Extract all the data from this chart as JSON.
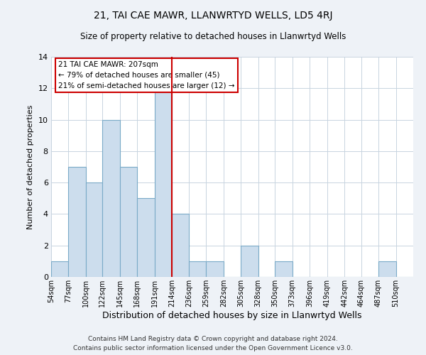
{
  "title1": "21, TAI CAE MAWR, LLANWRTYD WELLS, LD5 4RJ",
  "title2": "Size of property relative to detached houses in Llanwrtyd Wells",
  "xlabel": "Distribution of detached houses by size in Llanwrtyd Wells",
  "ylabel": "Number of detached properties",
  "footer1": "Contains HM Land Registry data © Crown copyright and database right 2024.",
  "footer2": "Contains public sector information licensed under the Open Government Licence v3.0.",
  "bin_labels": [
    "54sqm",
    "77sqm",
    "100sqm",
    "122sqm",
    "145sqm",
    "168sqm",
    "191sqm",
    "214sqm",
    "236sqm",
    "259sqm",
    "282sqm",
    "305sqm",
    "328sqm",
    "350sqm",
    "373sqm",
    "396sqm",
    "419sqm",
    "442sqm",
    "464sqm",
    "487sqm",
    "510sqm"
  ],
  "bar_heights": [
    1,
    7,
    6,
    10,
    7,
    5,
    12,
    4,
    1,
    1,
    0,
    2,
    0,
    1,
    0,
    0,
    0,
    0,
    0,
    1,
    0
  ],
  "bar_color": "#ccdded",
  "bar_edge_color": "#7aaac8",
  "vline_x_idx": 7,
  "vline_color": "#cc0000",
  "annotation_title": "21 TAI CAE MAWR: 207sqm",
  "annotation_line1": "← 79% of detached houses are smaller (45)",
  "annotation_line2": "21% of semi-detached houses are larger (12) →",
  "ylim": [
    0,
    14
  ],
  "yticks": [
    0,
    2,
    4,
    6,
    8,
    10,
    12,
    14
  ],
  "background_color": "#eef2f7",
  "plot_bg_color": "#ffffff",
  "grid_color": "#c8d4e0"
}
